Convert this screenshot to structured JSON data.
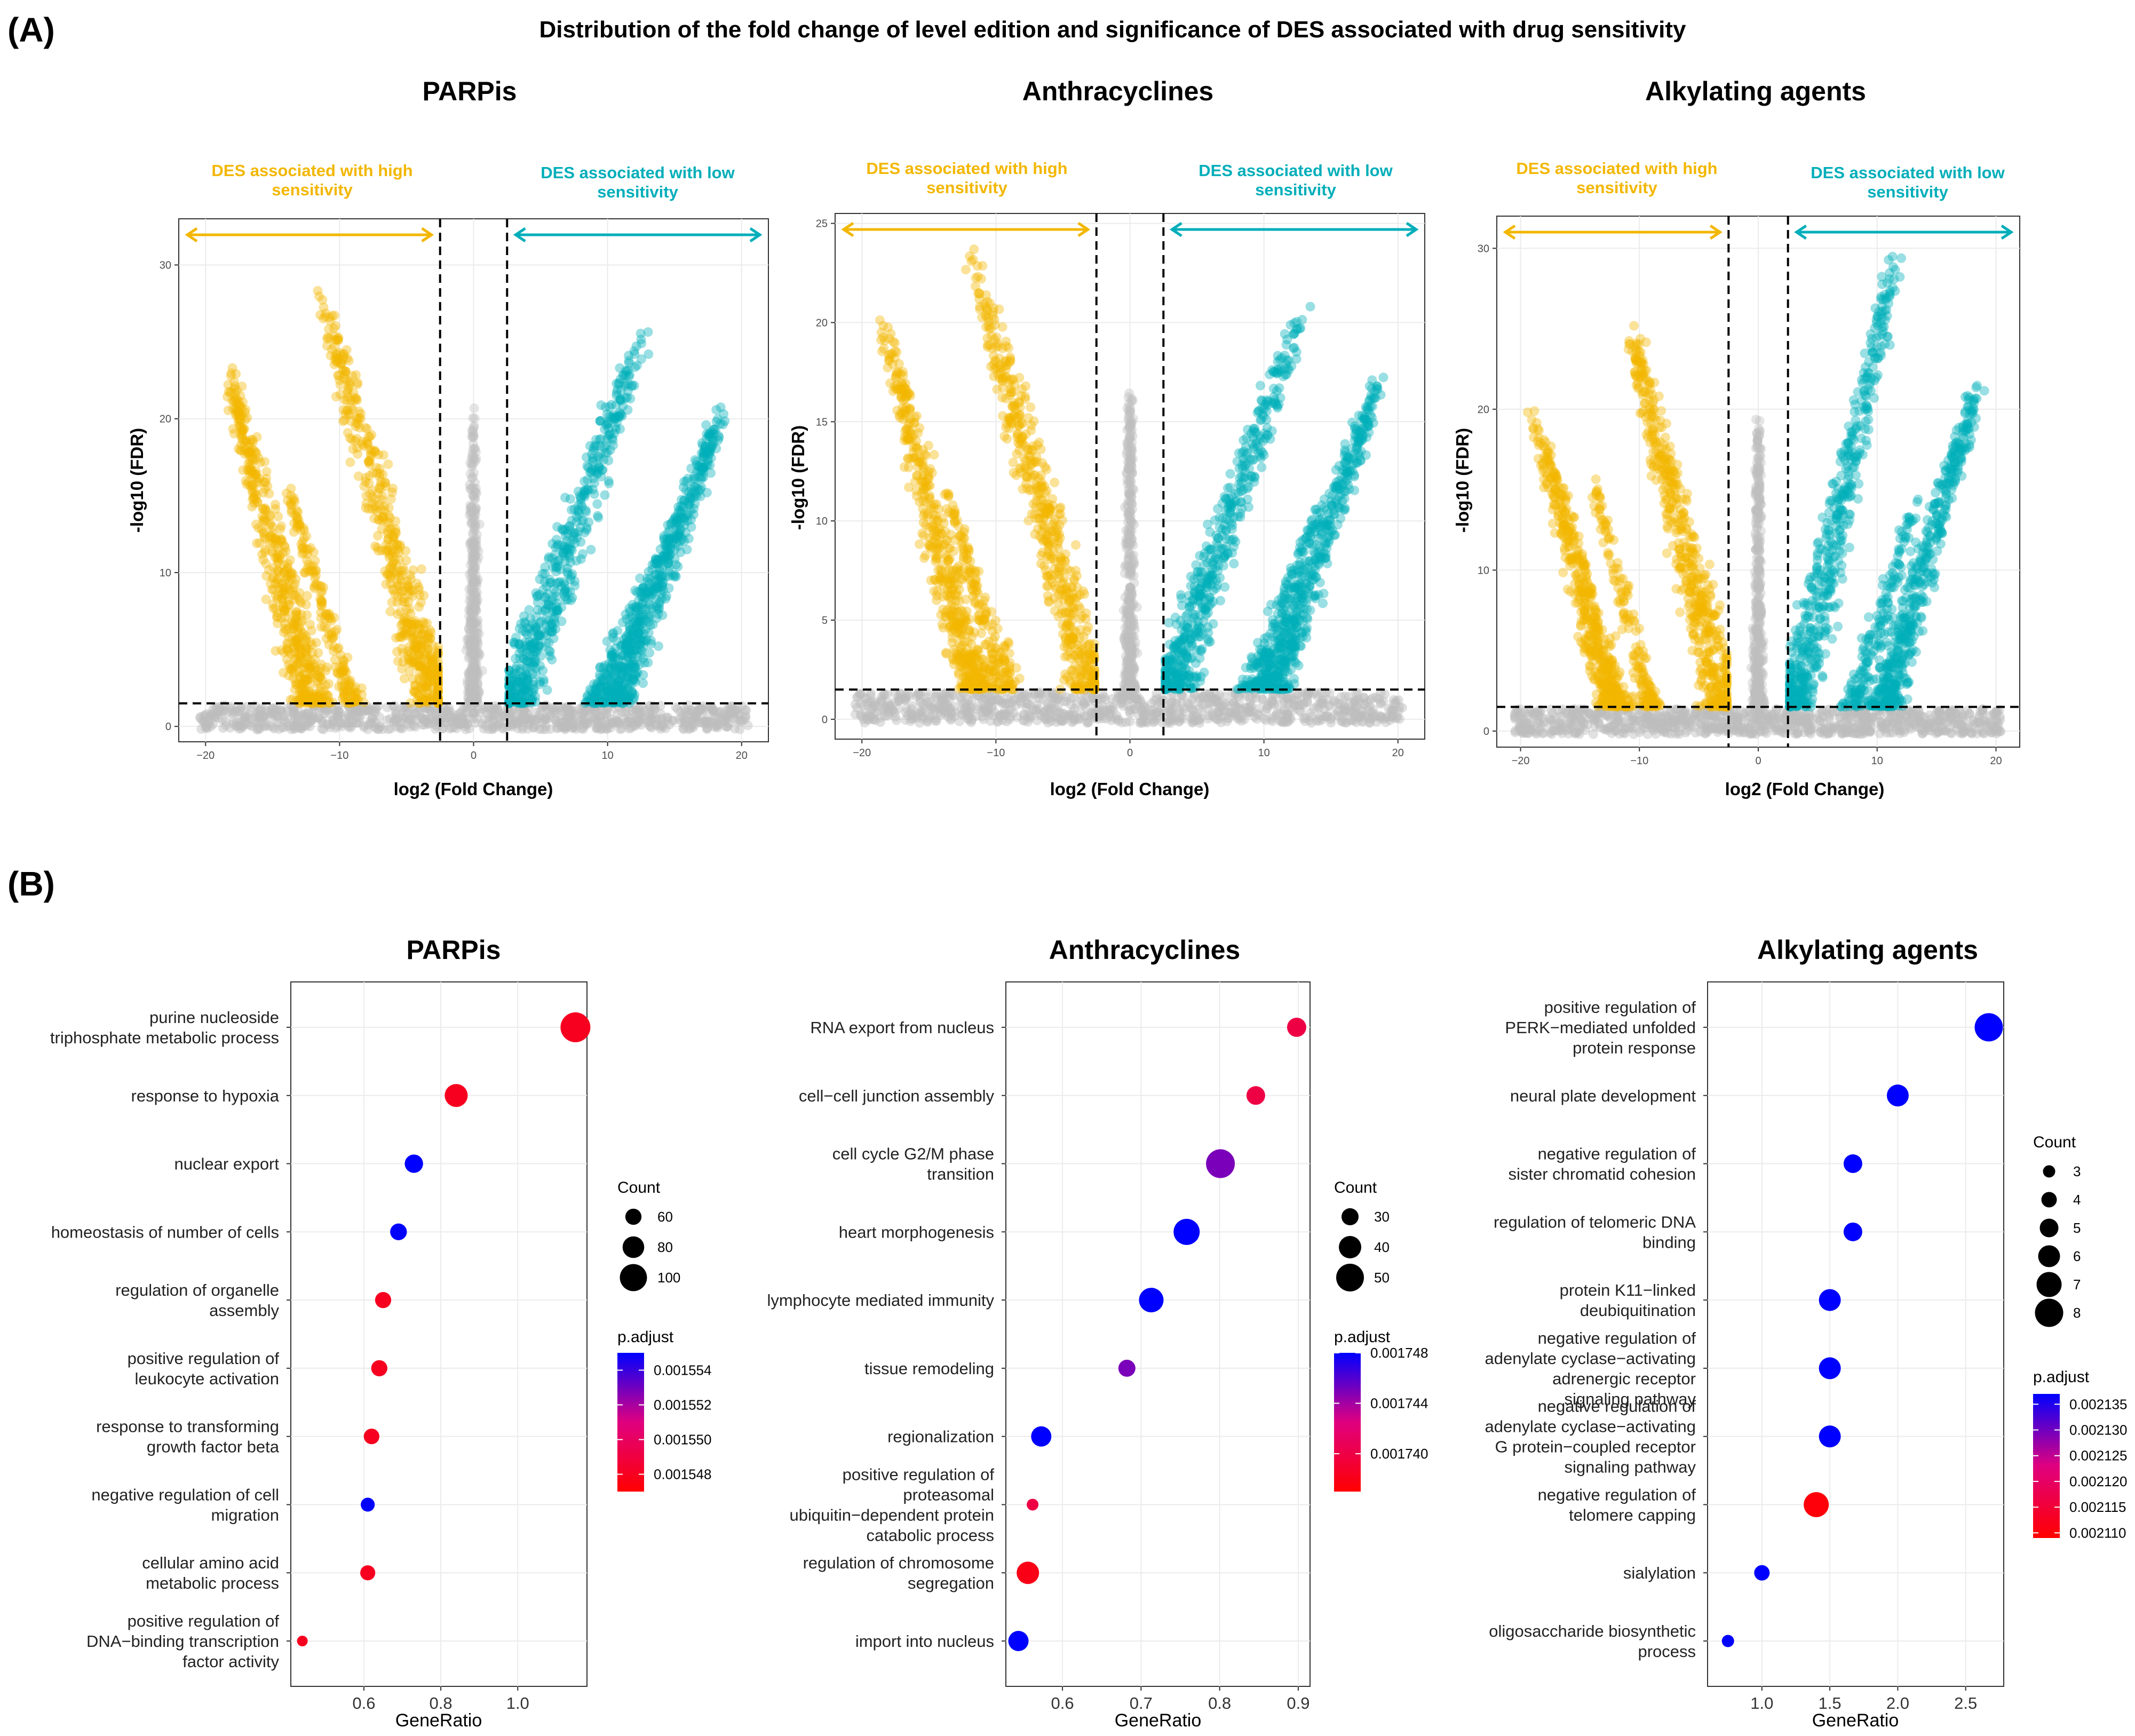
{
  "panel_a": {
    "letter": "(A)",
    "title": "Distribution of the fold change of level edition and significance of DES associated with drug sensitivity",
    "colors": {
      "high": "#F3B700",
      "low": "#00AEBA",
      "ns": "#BDBDBD"
    }
  },
  "panel_b": {
    "letter": "(B)",
    "color_low": "#FF0000",
    "color_high": "#0000FF"
  },
  "chart_data": [
    {
      "type": "scatter",
      "id": "volcano_parpis",
      "title": "PARPis",
      "xlabel": "log2 (Fold Change)",
      "ylabel": "-log10 (FDR)",
      "xlim": [
        -22,
        22
      ],
      "ylim": [
        -1,
        33
      ],
      "xticks": [
        -20,
        -10,
        0,
        10,
        20
      ],
      "yticks": [
        0,
        10,
        20,
        30
      ],
      "xtick_labels": [
        "−20",
        "−10",
        "0",
        "10",
        "20"
      ],
      "vlines": [
        -2.5,
        2.5
      ],
      "hline": 1.5,
      "annotation_high": [
        "DES associated with high",
        "sensitivity"
      ],
      "annotation_low": [
        "DES associated with low",
        "sensitivity"
      ],
      "bands": [
        {
          "group": "high",
          "x_top": -18.5,
          "y_top": 24,
          "x_end": -12,
          "spread": 2.2,
          "n": 520
        },
        {
          "group": "high",
          "x_top": -14,
          "y_top": 16,
          "x_end": -9,
          "spread": 1.4,
          "n": 170
        },
        {
          "group": "high",
          "x_top": -11.5,
          "y_top": 28.5,
          "x_end": -2.8,
          "spread": 2.6,
          "n": 560
        },
        {
          "group": "low",
          "x_top": 13,
          "y_top": 26.5,
          "x_end": 3,
          "spread": 2.6,
          "n": 540
        },
        {
          "group": "low",
          "x_top": 16,
          "y_top": 15,
          "x_end": 9,
          "spread": 1.6,
          "n": 170
        },
        {
          "group": "low",
          "x_top": 18.8,
          "y_top": 21,
          "x_end": 10.5,
          "spread": 2.2,
          "n": 520
        },
        {
          "group": "ns",
          "x_top": 0,
          "y_top": 21,
          "x_end": 0,
          "spread": 1.2,
          "n": 380
        }
      ]
    },
    {
      "type": "scatter",
      "id": "volcano_anthracyclines",
      "title": "Anthracyclines",
      "xlabel": "log2 (Fold Change)",
      "ylabel": "-log10 (FDR)",
      "xlim": [
        -22,
        22
      ],
      "ylim": [
        -1,
        25.5
      ],
      "xticks": [
        -20,
        -10,
        0,
        10,
        20
      ],
      "yticks": [
        0,
        5,
        10,
        15,
        20,
        25
      ],
      "xtick_labels": [
        "−20",
        "−10",
        "0",
        "10",
        "20"
      ],
      "vlines": [
        -2.5,
        2.5
      ],
      "hline": 1.5,
      "annotation_high": [
        "DES associated with high",
        "sensitivity"
      ],
      "annotation_low": [
        "DES associated with low",
        "sensitivity"
      ],
      "bands": [
        {
          "group": "high",
          "x_top": -18.8,
          "y_top": 21,
          "x_end": -11.5,
          "spread": 2.2,
          "n": 520
        },
        {
          "group": "high",
          "x_top": -14,
          "y_top": 12,
          "x_end": -9,
          "spread": 1.4,
          "n": 170
        },
        {
          "group": "high",
          "x_top": -12,
          "y_top": 24,
          "x_end": -2.8,
          "spread": 2.6,
          "n": 560
        },
        {
          "group": "low",
          "x_top": 13,
          "y_top": 21,
          "x_end": 3,
          "spread": 2.6,
          "n": 540
        },
        {
          "group": "low",
          "x_top": 15,
          "y_top": 12,
          "x_end": 9,
          "spread": 1.6,
          "n": 170
        },
        {
          "group": "low",
          "x_top": 18.8,
          "y_top": 17.5,
          "x_end": 10.5,
          "spread": 2.2,
          "n": 520
        },
        {
          "group": "ns",
          "x_top": 0,
          "y_top": 17.5,
          "x_end": 0,
          "spread": 1.2,
          "n": 380
        }
      ]
    },
    {
      "type": "scatter",
      "id": "volcano_alkylating",
      "title": "Alkylating agents",
      "xlabel": "log2 (Fold Change)",
      "ylabel": "-log10 (FDR)",
      "xlim": [
        -22,
        22
      ],
      "ylim": [
        -1,
        32
      ],
      "xticks": [
        -20,
        -10,
        0,
        10,
        20
      ],
      "yticks": [
        0,
        10,
        20,
        30
      ],
      "xtick_labels": [
        "−20",
        "−10",
        "0",
        "10",
        "20"
      ],
      "vlines": [
        -2.5,
        2.5
      ],
      "hline": 1.5,
      "annotation_high": [
        "DES associated with high",
        "sensitivity"
      ],
      "annotation_low": [
        "DES associated with low",
        "sensitivity"
      ],
      "bands": [
        {
          "group": "high",
          "x_top": -19,
          "y_top": 20,
          "x_end": -12,
          "spread": 2.2,
          "n": 520
        },
        {
          "group": "high",
          "x_top": -14,
          "y_top": 16,
          "x_end": -9,
          "spread": 1.4,
          "n": 170
        },
        {
          "group": "high",
          "x_top": -11,
          "y_top": 26,
          "x_end": -2.8,
          "spread": 2.6,
          "n": 560
        },
        {
          "group": "low",
          "x_top": 12,
          "y_top": 30.5,
          "x_end": 3,
          "spread": 2.6,
          "n": 540
        },
        {
          "group": "low",
          "x_top": 13.5,
          "y_top": 15,
          "x_end": 8,
          "spread": 1.6,
          "n": 170
        },
        {
          "group": "low",
          "x_top": 18.8,
          "y_top": 22.5,
          "x_end": 10.5,
          "spread": 2.2,
          "n": 520
        },
        {
          "group": "ns",
          "x_top": 0,
          "y_top": 20,
          "x_end": 0,
          "spread": 1.2,
          "n": 380
        }
      ]
    },
    {
      "type": "scatter",
      "id": "dot_parpis",
      "title": "PARPis",
      "xlabel": "GeneRatio",
      "xlim": [
        0.41,
        1.18
      ],
      "xticks": [
        0.6,
        0.8,
        1.0
      ],
      "xtick_labels": [
        "0.6",
        "0.8",
        "1.0"
      ],
      "terms": [
        {
          "label": [
            "purine nucleoside",
            "triphosphate metabolic process"
          ],
          "x": 1.15,
          "count": 110,
          "padj": 0.001548
        },
        {
          "label": [
            "response to hypoxia"
          ],
          "x": 0.84,
          "count": 85,
          "padj": 0.001548
        },
        {
          "label": [
            "nuclear export"
          ],
          "x": 0.73,
          "count": 68,
          "padj": 0.001555
        },
        {
          "label": [
            "homeostasis of number of cells"
          ],
          "x": 0.69,
          "count": 62,
          "padj": 0.001555
        },
        {
          "label": [
            "regulation of organelle",
            "assembly"
          ],
          "x": 0.65,
          "count": 60,
          "padj": 0.001548
        },
        {
          "label": [
            "positive regulation of",
            "leukocyte activation"
          ],
          "x": 0.64,
          "count": 60,
          "padj": 0.001548
        },
        {
          "label": [
            "response to transforming",
            "growth factor beta"
          ],
          "x": 0.62,
          "count": 58,
          "padj": 0.001548
        },
        {
          "label": [
            "negative regulation of cell",
            "migration"
          ],
          "x": 0.61,
          "count": 52,
          "padj": 0.001555
        },
        {
          "label": [
            "cellular amino acid",
            "metabolic process"
          ],
          "x": 0.61,
          "count": 56,
          "padj": 0.001548
        },
        {
          "label": [
            "positive regulation of",
            "DNA−binding transcription",
            "factor activity"
          ],
          "x": 0.44,
          "count": 40,
          "padj": 0.001548
        }
      ],
      "size_legend": {
        "title": "Count",
        "values": [
          60,
          80,
          100
        ],
        "labels": [
          "60",
          "80",
          "100"
        ],
        "domain": [
          40,
          110
        ]
      },
      "color_legend": {
        "title": "p.adjust",
        "range": [
          0.001547,
          0.001555
        ],
        "ticks": [
          0.001554,
          0.001552,
          0.00155,
          0.001548
        ],
        "labels": [
          "0.001554",
          "0.001552",
          "0.001550",
          "0.001548"
        ]
      }
    },
    {
      "type": "scatter",
      "id": "dot_anthracyclines",
      "title": "Anthracyclines",
      "xlabel": "GeneRatio",
      "xlim": [
        0.528,
        0.915
      ],
      "xticks": [
        0.6,
        0.7,
        0.8,
        0.9
      ],
      "xtick_labels": [
        "0.6",
        "0.7",
        "0.8",
        "0.9"
      ],
      "terms": [
        {
          "label": [
            "RNA export from nucleus"
          ],
          "x": 0.898,
          "count": 34,
          "padj": 0.00174
        },
        {
          "label": [
            "cell−cell junction assembly"
          ],
          "x": 0.846,
          "count": 33,
          "padj": 0.00174
        },
        {
          "label": [
            "cell cycle G2/M phase",
            "transition"
          ],
          "x": 0.801,
          "count": 52,
          "padj": 0.001745
        },
        {
          "label": [
            "heart morphogenesis"
          ],
          "x": 0.758,
          "count": 47,
          "padj": 0.001748
        },
        {
          "label": [
            "lymphocyte mediated immunity"
          ],
          "x": 0.713,
          "count": 44,
          "padj": 0.001748
        },
        {
          "label": [
            "tissue remodeling"
          ],
          "x": 0.682,
          "count": 30,
          "padj": 0.001745
        },
        {
          "label": [
            "regionalization"
          ],
          "x": 0.573,
          "count": 36,
          "padj": 0.001748
        },
        {
          "label": [
            "positive regulation of",
            "proteasomal",
            "ubiquitin−dependent protein",
            "catabolic process"
          ],
          "x": 0.562,
          "count": 20,
          "padj": 0.00174
        },
        {
          "label": [
            "regulation of chromosome",
            "segregation"
          ],
          "x": 0.556,
          "count": 40,
          "padj": 0.001738
        },
        {
          "label": [
            "import into nucleus"
          ],
          "x": 0.544,
          "count": 36,
          "padj": 0.001748
        }
      ],
      "size_legend": {
        "title": "Count",
        "values": [
          30,
          40,
          50
        ],
        "labels": [
          "30",
          "40",
          "50"
        ],
        "domain": [
          18,
          54
        ]
      },
      "color_legend": {
        "title": "p.adjust",
        "range": [
          0.001737,
          0.001748
        ],
        "ticks": [
          0.001748,
          0.001744,
          0.00174
        ],
        "labels": [
          "0.001748",
          "0.001744",
          "0.001740"
        ]
      }
    },
    {
      "type": "scatter",
      "id": "dot_alkylating",
      "title": "Alkylating agents",
      "xlabel": "GeneRatio",
      "xlim": [
        0.6,
        2.78
      ],
      "xticks": [
        1.0,
        1.5,
        2.0,
        2.5
      ],
      "xtick_labels": [
        "1.0",
        "1.5",
        "2.0",
        "2.5"
      ],
      "terms": [
        {
          "label": [
            "positive regulation of",
            "PERK−mediated unfolded",
            "protein response"
          ],
          "x": 2.67,
          "count": 8,
          "padj": 0.002137
        },
        {
          "label": [
            "neural plate development"
          ],
          "x": 2.0,
          "count": 6,
          "padj": 0.002137
        },
        {
          "label": [
            "negative regulation of",
            "sister chromatid cohesion"
          ],
          "x": 1.67,
          "count": 5,
          "padj": 0.002137
        },
        {
          "label": [
            "regulation of telomeric DNA",
            "binding"
          ],
          "x": 1.67,
          "count": 5,
          "padj": 0.002137
        },
        {
          "label": [
            "protein K11−linked",
            "deubiquitination"
          ],
          "x": 1.5,
          "count": 6,
          "padj": 0.002137
        },
        {
          "label": [
            "negative regulation of",
            "adenylate cyclase−activating",
            "adrenergic receptor",
            "signaling pathway"
          ],
          "x": 1.5,
          "count": 6,
          "padj": 0.002137
        },
        {
          "label": [
            "negative regulation of",
            "adenylate cyclase−activating",
            "G protein−coupled receptor",
            "signaling pathway"
          ],
          "x": 1.5,
          "count": 6,
          "padj": 0.002137
        },
        {
          "label": [
            "negative regulation of",
            "telomere capping"
          ],
          "x": 1.4,
          "count": 7,
          "padj": 0.00211
        },
        {
          "label": [
            "sialylation"
          ],
          "x": 1.0,
          "count": 4,
          "padj": 0.002137
        },
        {
          "label": [
            "oligosaccharide biosynthetic",
            "process"
          ],
          "x": 0.75,
          "count": 3,
          "padj": 0.002137
        }
      ],
      "size_legend": {
        "title": "Count",
        "values": [
          3,
          4,
          5,
          6,
          7,
          8
        ],
        "labels": [
          "3",
          "4",
          "5",
          "6",
          "7",
          "8"
        ],
        "domain": [
          2.5,
          8.5
        ]
      },
      "color_legend": {
        "title": "p.adjust",
        "range": [
          0.002109,
          0.002137
        ],
        "ticks": [
          0.002135,
          0.00213,
          0.002125,
          0.00212,
          0.002115,
          0.00211
        ],
        "labels": [
          "0.002135",
          "0.002130",
          "0.002125",
          "0.002120",
          "0.002115",
          "0.002110"
        ]
      }
    }
  ]
}
